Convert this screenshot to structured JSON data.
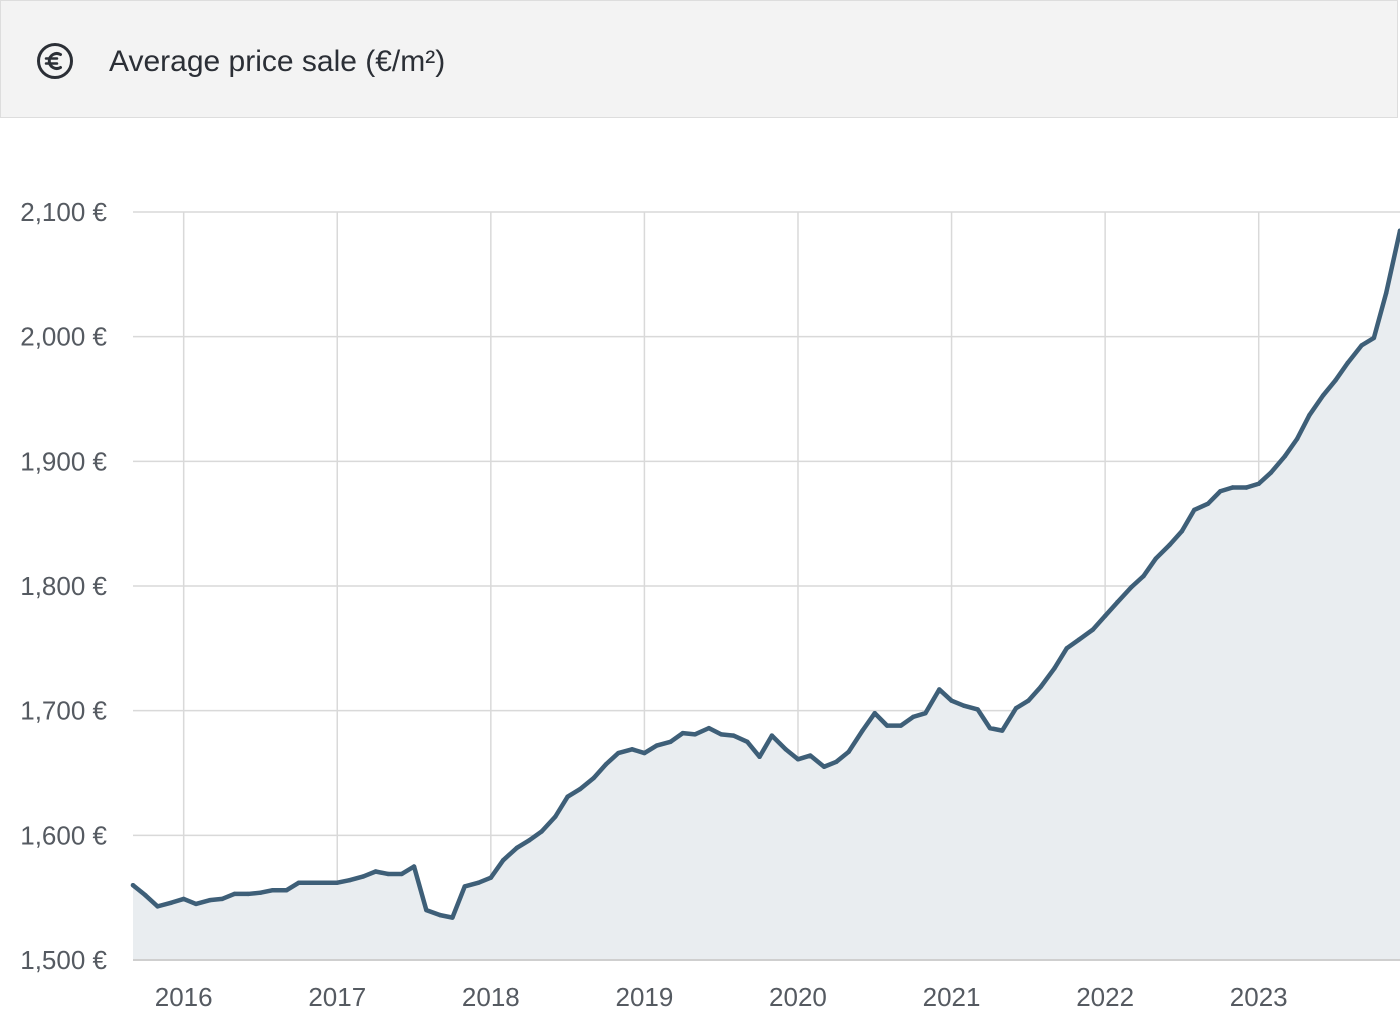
{
  "header": {
    "icon": "euro-circle-icon",
    "title": "Average price sale (€/m²)"
  },
  "colors": {
    "line": "#3e5f78",
    "area": "#e9edf0",
    "grid": "#d9d9d9",
    "header_bg": "#f3f3f3"
  },
  "chart_data": {
    "type": "area",
    "title": "Average price sale (€/m²)",
    "xlabel": "",
    "ylabel": "",
    "ylim": [
      1500,
      2100
    ],
    "xlim": [
      2015.67,
      2023.92
    ],
    "grid": true,
    "y_ticks": [
      1500,
      1600,
      1700,
      1800,
      1900,
      2000,
      2100
    ],
    "y_tick_labels": [
      "1,500 €",
      "1,600 €",
      "1,700 €",
      "1,800 €",
      "1,900 €",
      "2,000 €",
      "2,100 €"
    ],
    "x_ticks": [
      2016,
      2017,
      2018,
      2019,
      2020,
      2021,
      2022,
      2023
    ],
    "x_tick_labels": [
      "2016",
      "2017",
      "2018",
      "2019",
      "2020",
      "2021",
      "2022",
      "2023"
    ],
    "series": [
      {
        "name": "Average price sale (€/m²)",
        "x": [
          2015.67,
          2015.75,
          2015.83,
          2015.92,
          2016.0,
          2016.08,
          2016.17,
          2016.25,
          2016.33,
          2016.42,
          2016.5,
          2016.58,
          2016.67,
          2016.75,
          2016.83,
          2016.92,
          2017.0,
          2017.08,
          2017.17,
          2017.25,
          2017.33,
          2017.42,
          2017.5,
          2017.58,
          2017.67,
          2017.75,
          2017.83,
          2017.92,
          2018.0,
          2018.08,
          2018.17,
          2018.25,
          2018.33,
          2018.42,
          2018.5,
          2018.58,
          2018.67,
          2018.75,
          2018.83,
          2018.92,
          2019.0,
          2019.08,
          2019.17,
          2019.25,
          2019.33,
          2019.42,
          2019.5,
          2019.58,
          2019.67,
          2019.75,
          2019.83,
          2019.92,
          2020.0,
          2020.08,
          2020.17,
          2020.25,
          2020.33,
          2020.42,
          2020.5,
          2020.58,
          2020.67,
          2020.75,
          2020.83,
          2020.92,
          2021.0,
          2021.08,
          2021.17,
          2021.25,
          2021.33,
          2021.42,
          2021.5,
          2021.58,
          2021.67,
          2021.75,
          2021.83,
          2021.92,
          2022.0,
          2022.08,
          2022.17,
          2022.25,
          2022.33,
          2022.42,
          2022.5,
          2022.58,
          2022.67,
          2022.75,
          2022.83,
          2022.92,
          2023.0,
          2023.08,
          2023.17,
          2023.25,
          2023.33,
          2023.42,
          2023.5,
          2023.58,
          2023.67,
          2023.75,
          2023.83,
          2023.92
        ],
        "values": [
          1560,
          1552,
          1543,
          1546,
          1549,
          1545,
          1548,
          1549,
          1553,
          1553,
          1554,
          1556,
          1556,
          1562,
          1562,
          1562,
          1562,
          1564,
          1567,
          1571,
          1569,
          1569,
          1575,
          1540,
          1536,
          1534,
          1559,
          1562,
          1566,
          1580,
          1590,
          1596,
          1603,
          1615,
          1631,
          1637,
          1646,
          1657,
          1666,
          1669,
          1666,
          1672,
          1675,
          1682,
          1681,
          1686,
          1681,
          1680,
          1675,
          1663,
          1680,
          1669,
          1661,
          1664,
          1655,
          1659,
          1667,
          1684,
          1698,
          1688,
          1688,
          1695,
          1698,
          1717,
          1708,
          1704,
          1701,
          1686,
          1684,
          1702,
          1708,
          1719,
          1734,
          1750,
          1757,
          1765,
          1776,
          1787,
          1799,
          1808,
          1822,
          1833,
          1844,
          1861,
          1866,
          1876,
          1879,
          1879,
          1882,
          1891,
          1904,
          1918,
          1937,
          1953,
          1965,
          1979,
          1993,
          1999,
          2035,
          2085
        ]
      }
    ]
  }
}
